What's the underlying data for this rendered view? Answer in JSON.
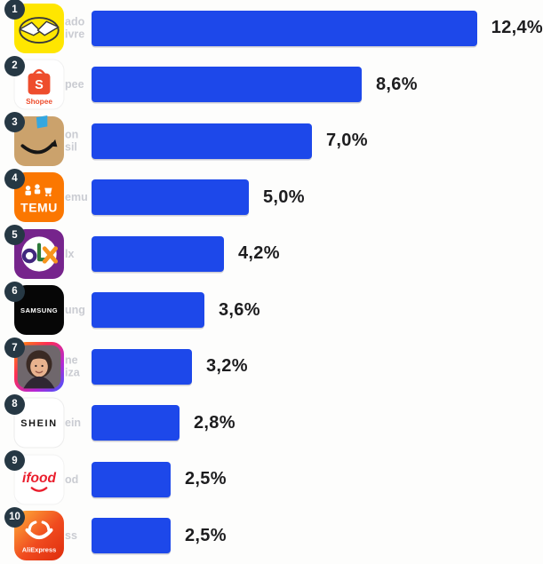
{
  "chart_data": {
    "type": "bar",
    "orientation": "horizontal",
    "title": "",
    "unit": "%",
    "decimal_style": "comma",
    "value_axis_max": 12.4,
    "bar_color": "#1d48ea",
    "rank_badge_color": "#263844",
    "categories": [
      "Mercado Livre",
      "Shopee",
      "Amazon",
      "Temu",
      "OLX",
      "Samsung",
      "Magazine Luiza",
      "Shein",
      "iFood",
      "AliExpress"
    ],
    "values": [
      12.4,
      8.6,
      7.0,
      5.0,
      4.2,
      3.6,
      3.2,
      2.8,
      2.5,
      2.5
    ],
    "rows": [
      {
        "rank": "1",
        "name": "Mercado Livre",
        "icon": "mercado-livre-app-icon",
        "value": 12.4,
        "value_label": "12,4%",
        "ghost_text": "ado\nivre"
      },
      {
        "rank": "2",
        "name": "Shopee",
        "icon": "shopee-app-icon",
        "value": 8.6,
        "value_label": "8,6%",
        "ghost_text": "pee"
      },
      {
        "rank": "3",
        "name": "Amazon",
        "icon": "amazon-app-icon",
        "value": 7.0,
        "value_label": "7,0%",
        "ghost_text": "on\nsil"
      },
      {
        "rank": "4",
        "name": "Temu",
        "icon": "temu-app-icon",
        "value": 5.0,
        "value_label": "5,0%",
        "ghost_text": "emu"
      },
      {
        "rank": "5",
        "name": "OLX",
        "icon": "olx-app-icon",
        "value": 4.2,
        "value_label": "4,2%",
        "ghost_text": "lx"
      },
      {
        "rank": "6",
        "name": "Samsung",
        "icon": "samsung-app-icon",
        "value": 3.6,
        "value_label": "3,6%",
        "ghost_text": "ung"
      },
      {
        "rank": "7",
        "name": "Magazine Luiza",
        "icon": "magalu-app-icon",
        "value": 3.2,
        "value_label": "3,2%",
        "ghost_text": "ne\niza"
      },
      {
        "rank": "8",
        "name": "Shein",
        "icon": "shein-app-icon",
        "value": 2.8,
        "value_label": "2,8%",
        "ghost_text": "ein"
      },
      {
        "rank": "9",
        "name": "iFood",
        "icon": "ifood-app-icon",
        "value": 2.5,
        "value_label": "2,5%",
        "ghost_text": "od"
      },
      {
        "rank": "10",
        "name": "AliExpress",
        "icon": "aliexpress-app-icon",
        "value": 2.5,
        "value_label": "2,5%",
        "ghost_text": "ss"
      }
    ]
  }
}
